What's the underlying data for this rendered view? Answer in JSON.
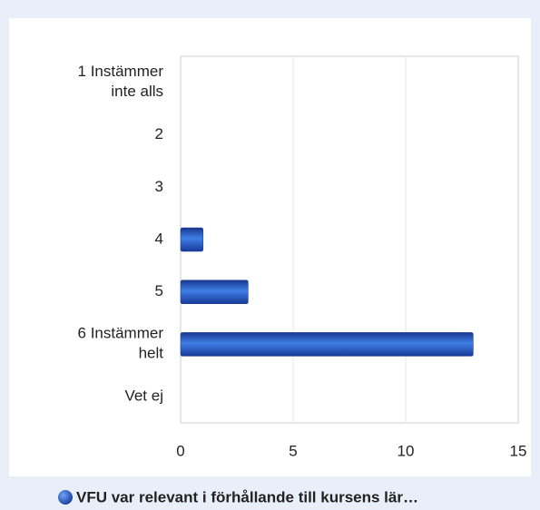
{
  "chart_data": {
    "type": "hbar",
    "categories": [
      "1 Instämmer inte alls",
      "2",
      "3",
      "4",
      "5",
      "6 Instämmer helt",
      "Vet ej"
    ],
    "series": [
      {
        "name": "VFU var relevant i förhållande till kursens lär…",
        "color": "#2f66d0",
        "values": [
          0,
          0,
          0,
          1,
          3,
          13,
          0
        ]
      }
    ],
    "xlim": [
      0,
      15
    ],
    "xticks": [
      0,
      5,
      10,
      15
    ],
    "grid": true,
    "legend": "bottom"
  }
}
